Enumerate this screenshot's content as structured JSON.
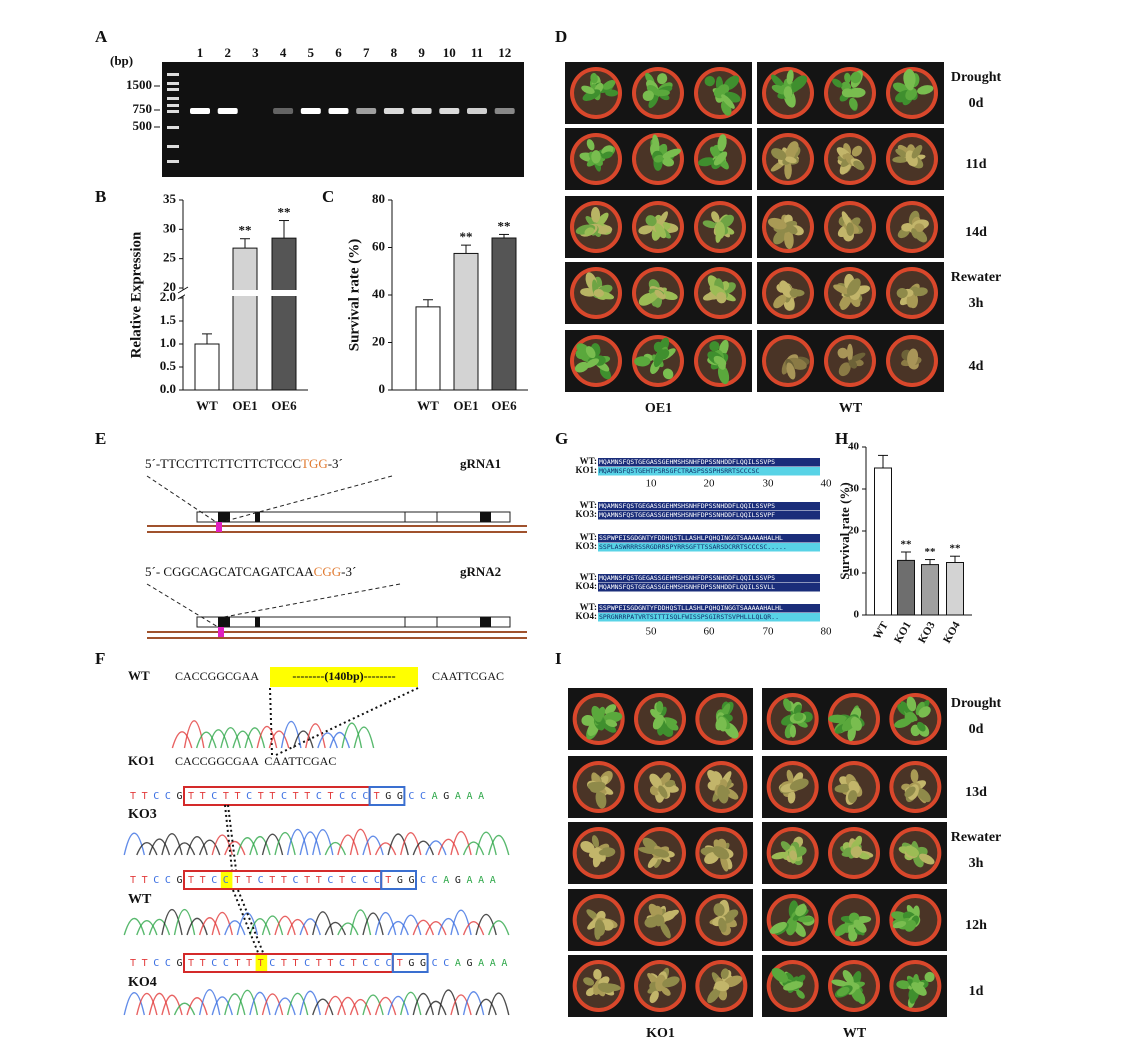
{
  "gel": {
    "letter": "A",
    "unit": "(bp)",
    "lanes": [
      "1",
      "2",
      "3",
      "4",
      "5",
      "6",
      "7",
      "8",
      "9",
      "10",
      "11",
      "12"
    ],
    "markers": [
      "1500",
      "750",
      "500"
    ]
  },
  "chart_data": [
    {
      "type": "bar",
      "letter": "B",
      "ylabel": "Relative Expression",
      "categories": [
        "WT",
        "OE1",
        "OE6"
      ],
      "values": [
        1.0,
        26.8,
        28.5
      ],
      "errors": [
        0.22,
        1.6,
        3.0
      ],
      "annotations": [
        null,
        "**",
        "**"
      ],
      "colors": [
        "#ffffff",
        "#d3d3d3",
        "#555555"
      ],
      "ylim": [
        0,
        35
      ],
      "ybreak": [
        2,
        20
      ],
      "yticks": [
        {
          "value": 0,
          "label": "0.0"
        },
        0.5,
        {
          "value": 1,
          "label": "1.0"
        },
        1.5,
        {
          "value": 2,
          "label": "2.0"
        },
        20,
        25,
        30,
        35
      ]
    },
    {
      "type": "bar",
      "letter": "C",
      "ylabel": "Survival rate (%)",
      "categories": [
        "WT",
        "OE1",
        "OE6"
      ],
      "values": [
        35,
        57.5,
        64
      ],
      "errors": [
        3,
        3.5,
        1.5
      ],
      "annotations": [
        null,
        "**",
        "**"
      ],
      "colors": [
        "#ffffff",
        "#d3d3d3",
        "#555555"
      ],
      "ylim": [
        0,
        80
      ],
      "yticks": [
        0,
        20,
        40,
        60,
        80
      ]
    },
    {
      "type": "bar",
      "letter": "H",
      "ylabel": "Survival rate (%)",
      "categories": [
        "WT",
        "KO1",
        "KO3",
        "KO4"
      ],
      "values": [
        35,
        13,
        12,
        12.5
      ],
      "errors": [
        3,
        2,
        1.2,
        1.5
      ],
      "annotations": [
        null,
        "**",
        "**",
        "**"
      ],
      "colors": [
        "#ffffff",
        "#6e6e6e",
        "#a0a0a0",
        "#d3d3d3"
      ],
      "ylim": [
        0,
        40
      ],
      "yticks": [
        0,
        10,
        20,
        30,
        40
      ],
      "rotate_labels": true
    }
  ],
  "photos": [
    {
      "letter": "D",
      "rows": [
        [
          "Drought",
          "0d"
        ],
        [
          "11d"
        ],
        [
          "14d"
        ],
        [
          "Rewater",
          "3h"
        ],
        [
          "4d"
        ]
      ],
      "groups": [
        "OE1",
        "WT"
      ]
    },
    {
      "letter": "I",
      "rows": [
        [
          "Drought",
          "0d"
        ],
        [
          "13d"
        ],
        [
          "Rewater",
          "3h"
        ],
        [
          "12h"
        ],
        [
          "1d"
        ]
      ],
      "groups": [
        "KO1",
        "WT"
      ]
    }
  ],
  "grna": {
    "letter": "E",
    "guides": [
      {
        "seq": "5´-TTCCTTCTTCTTCTCCC",
        "pam": "TGG",
        "end": "-3´",
        "name": "gRNA1"
      },
      {
        "seq": "5´- CGGCAGCATCAGATCAA",
        "pam": "CGG",
        "end": "-3´",
        "name": "gRNA2"
      }
    ]
  },
  "sanger": {
    "letter": "F",
    "wt_label": "WT",
    "wt_left": "CACCGGCGAA",
    "deletion": "--------(140bp)--------",
    "wt_right": "CAATTCGAC",
    "ko1_label": "KO1",
    "ko1_seq": "CACCGGCGAA  CAATTCGAC",
    "rows": [
      {
        "label": "KO3",
        "prefix": "TTCCG",
        "box": "TTCTTCTTCTTCTCCC",
        "pam": "TGG",
        "suffix": "CCAGAAA"
      },
      {
        "label": "WT",
        "prefix": "TTCCG",
        "box_pre": "TTC",
        "box_hl": "C",
        "box_post": "TTCTTCTTCTCCC",
        "pam": "TGG",
        "suffix": "CCAGAAA"
      },
      {
        "label": "KO4",
        "prefix": "TTCCG",
        "box_pre": "TTCCTT",
        "box_hl": "T",
        "box_post": "CTTCTTCTCCC",
        "pam": "TGG",
        "suffix": "CCAGAAA"
      }
    ]
  },
  "alignment": {
    "letter": "G",
    "blocks": [
      [
        {
          "label": "WT:",
          "seq": "MQAMNSFQSTGEGASSGEHMSHSNHFDPSSNHDDFLQQILSSVPS"
        },
        {
          "label": "KO1:",
          "seq": "MQAMNSFQSTGEHTPSRSGFCTRASPSSSPHSRRTSCCCSC"
        }
      ],
      [
        {
          "label": "WT:",
          "seq": "MQAMNSFQSTGEGASSGEHMSHSNHFDPSSNHDDFLQQILSSVPS"
        },
        {
          "label": "KO3:",
          "seq": "MQAMNSFQSTGEGASSGEHMSHSNHFDPSSNHDDFLQQILSSVPF"
        }
      ],
      [
        {
          "label": "WT:",
          "seq": "SSPWPEISGDGNTYFDDHQSTLLASHLPQHQINGGTSAAAAAHALHL"
        },
        {
          "label": "KO3:",
          "seq": "SSPLASWRRRSSRGDRRSPYRRSGFTTSSARSDCRRTSCCCSC....."
        }
      ],
      [
        {
          "label": "WT:",
          "seq": "MQAMNSFQSTGEGASSGEHMSHSNHFDPSSNHDDFLQQILSSVPS"
        },
        {
          "label": "KO4:",
          "seq": "MQAMNSFQSTGEGASSGEHMSHSNHFDPSSNHDDFLQQILSSVLL"
        }
      ],
      [
        {
          "label": "WT:",
          "seq": "SSPWPEISGDGNTYFDDHQSTLLASHLPQHQINGGTSAAAAAHALHL"
        },
        {
          "label": "KO4:",
          "seq": "SPRGNRRPATVRTSITTISQLFWISSPSGIRSTSVPHLLLQLQR.."
        }
      ]
    ],
    "rulers": [
      [
        "10",
        "20",
        "30",
        "40"
      ],
      [
        "50",
        "60",
        "70",
        "80"
      ]
    ]
  }
}
